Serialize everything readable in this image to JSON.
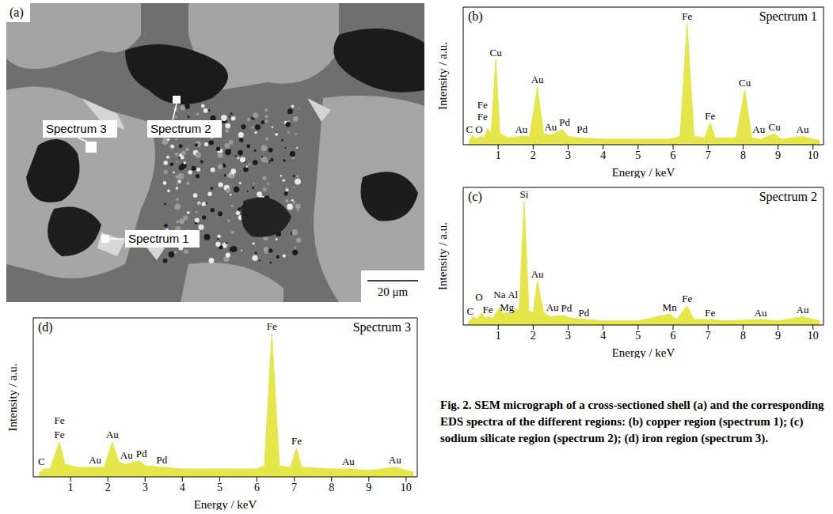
{
  "micrograph": {
    "panel": "(a)",
    "labels": [
      "Spectrum 1",
      "Spectrum 2",
      "Spectrum 3"
    ],
    "scale_bar": "20 μm"
  },
  "caption": "Fig. 2.   SEM micrograph of a cross-sectioned shell (a) and the corresponding EDS spectra of the different regions: (b) copper region (spectrum 1); (c) sodium silicate region (spectrum 2); (d) iron region (spectrum 3).",
  "chart_data": [
    {
      "type": "area",
      "panel": "(b)",
      "title": "Spectrum 1",
      "x_label": "Energy / keV",
      "y_label": "Intensity / a.u.",
      "color": "#e4e64a",
      "xlim": [
        0,
        10.3
      ],
      "xticks": [
        1,
        2,
        3,
        4,
        5,
        6,
        7,
        8,
        9,
        10
      ],
      "ylim": [
        0,
        100
      ],
      "tick_labels": "x",
      "x": [
        0.15,
        0.27,
        0.35,
        0.52,
        0.6,
        0.7,
        0.8,
        0.93,
        1.05,
        1.3,
        1.66,
        1.9,
        2.12,
        2.3,
        2.5,
        2.84,
        3.0,
        3.3,
        4,
        5,
        5.9,
        6.2,
        6.4,
        6.6,
        6.9,
        7.06,
        7.2,
        7.8,
        8.05,
        8.25,
        8.5,
        8.9,
        9.1,
        9.7,
        10.2
      ],
      "values": [
        2,
        7,
        4,
        6,
        5,
        12,
        8,
        62,
        8,
        5,
        6,
        6,
        42,
        8,
        7,
        11,
        6,
        5,
        4,
        4,
        4,
        6,
        88,
        6,
        5,
        16,
        5,
        5,
        40,
        5,
        4,
        8,
        4,
        6,
        3
      ],
      "annotations": [
        {
          "text": "C",
          "x": 0.18,
          "y": 8
        },
        {
          "text": "O",
          "x": 0.45,
          "y": 8
        },
        {
          "text": "Fe",
          "x": 0.55,
          "y": 17
        },
        {
          "text": "Fe",
          "x": 0.55,
          "y": 26
        },
        {
          "text": "Cu",
          "x": 0.93,
          "y": 64
        },
        {
          "text": "Au",
          "x": 1.66,
          "y": 8
        },
        {
          "text": "Au",
          "x": 2.12,
          "y": 44
        },
        {
          "text": "Au",
          "x": 2.5,
          "y": 10
        },
        {
          "text": "Pd",
          "x": 2.9,
          "y": 13
        },
        {
          "text": "Pd",
          "x": 3.4,
          "y": 8
        },
        {
          "text": "Fe",
          "x": 6.4,
          "y": 90
        },
        {
          "text": "Fe",
          "x": 7.06,
          "y": 18
        },
        {
          "text": "Cu",
          "x": 8.05,
          "y": 42
        },
        {
          "text": "Au",
          "x": 8.45,
          "y": 8
        },
        {
          "text": "Cu",
          "x": 8.9,
          "y": 10
        },
        {
          "text": "Au",
          "x": 9.7,
          "y": 8
        }
      ]
    },
    {
      "type": "area",
      "panel": "(c)",
      "title": "Spectrum 2",
      "x_label": "Energy / keV",
      "y_label": "Intensity / a.u.",
      "color": "#e4e64a",
      "xlim": [
        0,
        10.3
      ],
      "xticks": [
        1,
        2,
        3,
        4,
        5,
        6,
        7,
        8,
        9,
        10
      ],
      "ylim": [
        0,
        100
      ],
      "tick_labels": "x",
      "x": [
        0.15,
        0.28,
        0.4,
        0.52,
        0.62,
        0.7,
        0.85,
        1.04,
        1.15,
        1.25,
        1.38,
        1.49,
        1.6,
        1.74,
        1.88,
        2.0,
        2.12,
        2.3,
        2.5,
        2.84,
        3.1,
        3.5,
        4,
        5,
        5.9,
        6.1,
        6.4,
        6.6,
        7.06,
        7.5,
        8.5,
        9,
        9.7,
        10.2
      ],
      "values": [
        2,
        6,
        4,
        9,
        5,
        6,
        5,
        13,
        8,
        9,
        8,
        12,
        10,
        90,
        10,
        9,
        32,
        9,
        6,
        7,
        5,
        4,
        3,
        3,
        8,
        4,
        14,
        4,
        4,
        3,
        4,
        3,
        6,
        3
      ],
      "annotations": [
        {
          "text": "C",
          "x": 0.2,
          "y": 7
        },
        {
          "text": "O",
          "x": 0.45,
          "y": 17
        },
        {
          "text": "Fe",
          "x": 0.7,
          "y": 8
        },
        {
          "text": "Na",
          "x": 1.04,
          "y": 19
        },
        {
          "text": "Mg",
          "x": 1.25,
          "y": 10
        },
        {
          "text": "Al",
          "x": 1.42,
          "y": 19
        },
        {
          "text": "Si",
          "x": 1.74,
          "y": 92
        },
        {
          "text": "Au",
          "x": 2.12,
          "y": 34
        },
        {
          "text": "Au",
          "x": 2.55,
          "y": 10
        },
        {
          "text": "Pd",
          "x": 2.95,
          "y": 9
        },
        {
          "text": "Pd",
          "x": 3.45,
          "y": 6
        },
        {
          "text": "Mn",
          "x": 5.9,
          "y": 10
        },
        {
          "text": "Fe",
          "x": 6.4,
          "y": 16
        },
        {
          "text": "Fe",
          "x": 7.06,
          "y": 6
        },
        {
          "text": "Au",
          "x": 8.5,
          "y": 6
        },
        {
          "text": "Au",
          "x": 9.7,
          "y": 8
        }
      ]
    },
    {
      "type": "area",
      "panel": "(d)",
      "title": "Spectrum 3",
      "x_label": "Energy / keV",
      "y_label": "Intensity / a.u.",
      "color": "#e4e64a",
      "xlim": [
        0,
        10.3
      ],
      "xticks": [
        1,
        2,
        3,
        4,
        5,
        6,
        7,
        8,
        9,
        10
      ],
      "ylim": [
        0,
        100
      ],
      "tick_labels": "x",
      "x": [
        0.15,
        0.28,
        0.45,
        0.7,
        0.85,
        1.2,
        1.66,
        1.9,
        2.12,
        2.3,
        2.5,
        2.84,
        3.0,
        3.5,
        4,
        5,
        6.0,
        6.2,
        6.4,
        6.6,
        6.9,
        7.06,
        7.2,
        8,
        8.5,
        9,
        9.7,
        10.2
      ],
      "values": [
        2,
        5,
        5,
        22,
        8,
        6,
        6,
        6,
        22,
        9,
        8,
        10,
        7,
        6,
        5,
        5,
        5,
        7,
        90,
        7,
        6,
        18,
        6,
        5,
        5,
        4,
        6,
        3
      ],
      "annotations": [
        {
          "text": "C",
          "x": 0.22,
          "y": 7
        },
        {
          "text": "Fe",
          "x": 0.7,
          "y": 24
        },
        {
          "text": "Fe",
          "x": 0.7,
          "y": 33
        },
        {
          "text": "Au",
          "x": 1.66,
          "y": 8
        },
        {
          "text": "Au",
          "x": 2.12,
          "y": 24
        },
        {
          "text": "Au",
          "x": 2.5,
          "y": 11
        },
        {
          "text": "Pd",
          "x": 2.9,
          "y": 12
        },
        {
          "text": "Pd",
          "x": 3.45,
          "y": 8
        },
        {
          "text": "Fe",
          "x": 6.4,
          "y": 92
        },
        {
          "text": "Fe",
          "x": 7.06,
          "y": 20
        },
        {
          "text": "Au",
          "x": 8.45,
          "y": 7
        },
        {
          "text": "Au",
          "x": 9.7,
          "y": 8
        }
      ]
    }
  ]
}
